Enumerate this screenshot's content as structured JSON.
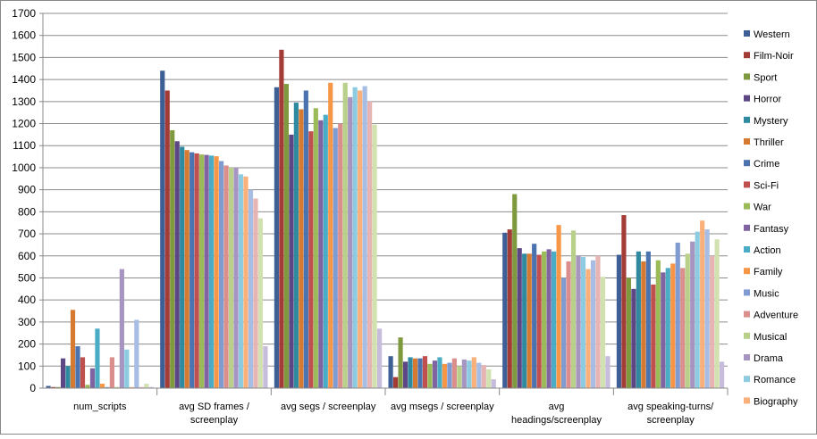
{
  "chart_data": {
    "type": "bar",
    "categories": [
      [
        "num_scripts"
      ],
      [
        "avg SD frames /",
        "screenplay"
      ],
      [
        "avg segs / screenplay"
      ],
      [
        "avg msegs / screenplay"
      ],
      [
        "avg",
        "headings/screenplay"
      ],
      [
        "avg speaking-turns/",
        "screenplay"
      ]
    ],
    "ylim": [
      0,
      1700
    ],
    "ytick_step": 100,
    "grid": true,
    "legend_position": "right",
    "series": [
      {
        "name": "Western",
        "color": "#3e5f95",
        "values": [
          10,
          1440,
          1365,
          145,
          705,
          605
        ]
      },
      {
        "name": "Film-Noir",
        "color": "#a33b37",
        "values": [
          5,
          1350,
          1535,
          50,
          720,
          785
        ]
      },
      {
        "name": "Sport",
        "color": "#7f9a3e",
        "values": [
          5,
          1170,
          1380,
          230,
          880,
          500
        ]
      },
      {
        "name": "Horror",
        "color": "#5c4684",
        "values": [
          135,
          1120,
          1150,
          120,
          635,
          450
        ]
      },
      {
        "name": "Mystery",
        "color": "#2f8aa0",
        "values": [
          100,
          1095,
          1295,
          140,
          610,
          620
        ]
      },
      {
        "name": "Thriller",
        "color": "#d77a31",
        "values": [
          355,
          1080,
          1265,
          135,
          610,
          575
        ]
      },
      {
        "name": "Crime",
        "color": "#4a73b0",
        "values": [
          190,
          1070,
          1350,
          135,
          655,
          620
        ]
      },
      {
        "name": "Sci-Fi",
        "color": "#c0504d",
        "values": [
          140,
          1065,
          1165,
          145,
          605,
          470
        ]
      },
      {
        "name": "War",
        "color": "#9bbb59",
        "values": [
          15,
          1060,
          1270,
          110,
          620,
          580
        ]
      },
      {
        "name": "Fantasy",
        "color": "#8064a2",
        "values": [
          90,
          1058,
          1215,
          125,
          630,
          525
        ]
      },
      {
        "name": "Action",
        "color": "#4bacc6",
        "values": [
          270,
          1055,
          1240,
          140,
          620,
          545
        ]
      },
      {
        "name": "Family",
        "color": "#f79646",
        "values": [
          20,
          1052,
          1385,
          110,
          740,
          565
        ]
      },
      {
        "name": "Music",
        "color": "#7f9bd2",
        "values": [
          5,
          1030,
          1180,
          115,
          500,
          660
        ]
      },
      {
        "name": "Adventure",
        "color": "#da8f8d",
        "values": [
          140,
          1010,
          1200,
          135,
          575,
          545
        ]
      },
      {
        "name": "Musical",
        "color": "#b9d08b",
        "values": [
          5,
          1000,
          1385,
          100,
          715,
          610
        ]
      },
      {
        "name": "Drama",
        "color": "#a795c1",
        "values": [
          540,
          1000,
          1320,
          130,
          600,
          665
        ]
      },
      {
        "name": "Romance",
        "color": "#8dcce0",
        "values": [
          175,
          970,
          1365,
          125,
          595,
          710
        ]
      },
      {
        "name": "Biography",
        "color": "#f9b07a",
        "values": [
          5,
          960,
          1350,
          140,
          540,
          760
        ]
      },
      {
        "name": "",
        "color": "#a7bde3",
        "values": [
          310,
          900,
          1370,
          115,
          580,
          720
        ]
      },
      {
        "name": "",
        "color": "#e6b4b2",
        "values": [
          5,
          860,
          1300,
          105,
          600,
          600
        ]
      },
      {
        "name": "",
        "color": "#d2e1b0",
        "values": [
          20,
          770,
          1195,
          85,
          505,
          675
        ]
      },
      {
        "name": "",
        "color": "#c7bcdb",
        "values": [
          5,
          190,
          270,
          40,
          145,
          120
        ]
      }
    ]
  }
}
